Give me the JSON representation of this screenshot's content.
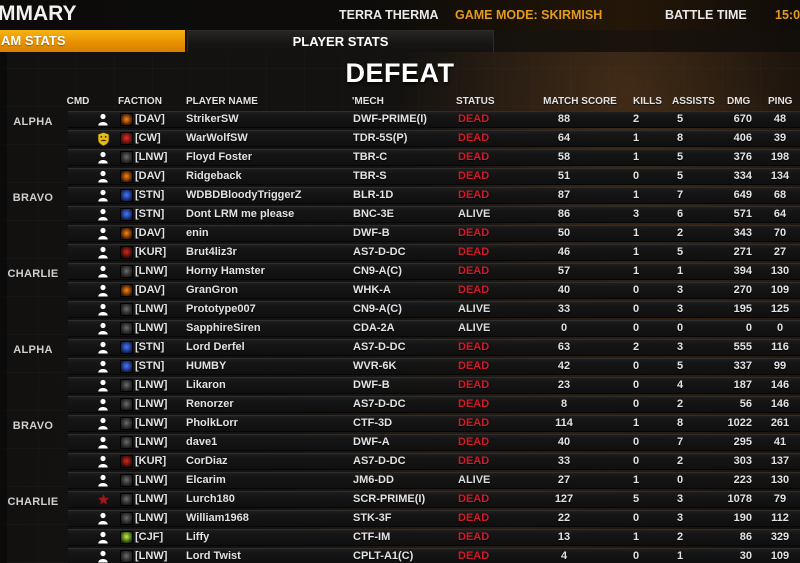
{
  "top_bar": {
    "title": "MMARY",
    "map_name": "TERRA THERMA",
    "game_mode": "GAME MODE: SKIRMISH",
    "battle_time_label": "BATTLE TIME",
    "battle_time_value": "15:00"
  },
  "tabs": {
    "team_stats_label": "AM STATS",
    "player_stats_label": "PLAYER STATS"
  },
  "result_banner": "DEFEAT",
  "colors": {
    "accent_orange": "#e39b1c",
    "tab_active_gold": "#f0a400",
    "dead_red": "#cf1b2b",
    "alive_white": "#dcdcdc"
  },
  "icons": {
    "cmd_player": "player-icon",
    "cmd_commander": "commander-shield-icon",
    "cmd_star": "star-icon"
  },
  "table": {
    "columns": [
      "CMD",
      "FACTION",
      "PLAYER NAME",
      "'MECH",
      "STATUS",
      "MATCH SCORE",
      "KILLS",
      "ASSISTS",
      "DMG",
      "PING"
    ],
    "groups": [
      {
        "lance": "ALPHA",
        "rows": [
          {
            "cmd": "player",
            "faction": "DAV",
            "tag": "[DAV]",
            "player": "StrikerSW",
            "mech": "DWF-PRIME(I)",
            "status": "DEAD",
            "score": "88",
            "kills": "2",
            "assists": "5",
            "dmg": "670",
            "ping": "48"
          },
          {
            "cmd": "commander",
            "faction": "CW",
            "tag": "[CW]",
            "player": "WarWolfSW",
            "mech": "TDR-5S(P)",
            "status": "DEAD",
            "score": "64",
            "kills": "1",
            "assists": "8",
            "dmg": "406",
            "ping": "39"
          },
          {
            "cmd": "player",
            "faction": "LNW",
            "tag": "[LNW]",
            "player": "Floyd Foster",
            "mech": "TBR-C",
            "status": "DEAD",
            "score": "58",
            "kills": "1",
            "assists": "5",
            "dmg": "376",
            "ping": "198"
          },
          {
            "cmd": "player",
            "faction": "DAV",
            "tag": "[DAV]",
            "player": "Ridgeback",
            "mech": "TBR-S",
            "status": "DEAD",
            "score": "51",
            "kills": "0",
            "assists": "5",
            "dmg": "334",
            "ping": "134"
          }
        ]
      },
      {
        "lance": "BRAVO",
        "rows": [
          {
            "cmd": "player",
            "faction": "STN",
            "tag": "[STN]",
            "player": "WDBDBloodyTriggerZ",
            "mech": "BLR-1D",
            "status": "DEAD",
            "score": "87",
            "kills": "1",
            "assists": "7",
            "dmg": "649",
            "ping": "68"
          },
          {
            "cmd": "player",
            "faction": "STN",
            "tag": "[STN]",
            "player": "Dont LRM me please",
            "mech": "BNC-3E",
            "status": "ALIVE",
            "score": "86",
            "kills": "3",
            "assists": "6",
            "dmg": "571",
            "ping": "64"
          },
          {
            "cmd": "player",
            "faction": "DAV",
            "tag": "[DAV]",
            "player": "enin",
            "mech": "DWF-B",
            "status": "DEAD",
            "score": "50",
            "kills": "1",
            "assists": "2",
            "dmg": "343",
            "ping": "70"
          },
          {
            "cmd": "player",
            "faction": "KUR",
            "tag": "[KUR]",
            "player": "Brut4liz3r",
            "mech": "AS7-D-DC",
            "status": "DEAD",
            "score": "46",
            "kills": "1",
            "assists": "5",
            "dmg": "271",
            "ping": "27"
          }
        ]
      },
      {
        "lance": "CHARLIE",
        "rows": [
          {
            "cmd": "player",
            "faction": "LNW",
            "tag": "[LNW]",
            "player": "Horny Hamster",
            "mech": "CN9-A(C)",
            "status": "DEAD",
            "score": "57",
            "kills": "1",
            "assists": "1",
            "dmg": "394",
            "ping": "130"
          },
          {
            "cmd": "player",
            "faction": "DAV",
            "tag": "[DAV]",
            "player": "GranGron",
            "mech": "WHK-A",
            "status": "DEAD",
            "score": "40",
            "kills": "0",
            "assists": "3",
            "dmg": "270",
            "ping": "109"
          },
          {
            "cmd": "player",
            "faction": "LNW",
            "tag": "[LNW]",
            "player": "Prototype007",
            "mech": "CN9-A(C)",
            "status": "ALIVE",
            "score": "33",
            "kills": "0",
            "assists": "3",
            "dmg": "195",
            "ping": "125"
          },
          {
            "cmd": "player",
            "faction": "LNW",
            "tag": "[LNW]",
            "player": "SapphireSiren",
            "mech": "CDA-2A",
            "status": "ALIVE",
            "score": "0",
            "kills": "0",
            "assists": "0",
            "dmg": "0",
            "ping": "0"
          }
        ]
      },
      {
        "lance": "ALPHA",
        "rows": [
          {
            "cmd": "player",
            "faction": "STN",
            "tag": "[STN]",
            "player": "Lord Derfel",
            "mech": "AS7-D-DC",
            "status": "DEAD",
            "score": "63",
            "kills": "2",
            "assists": "3",
            "dmg": "555",
            "ping": "116"
          },
          {
            "cmd": "player",
            "faction": "STN",
            "tag": "[STN]",
            "player": "HUMBY",
            "mech": "WVR-6K",
            "status": "DEAD",
            "score": "42",
            "kills": "0",
            "assists": "5",
            "dmg": "337",
            "ping": "99"
          },
          {
            "cmd": "player",
            "faction": "LNW",
            "tag": "[LNW]",
            "player": "Likaron",
            "mech": "DWF-B",
            "status": "DEAD",
            "score": "23",
            "kills": "0",
            "assists": "4",
            "dmg": "187",
            "ping": "146"
          },
          {
            "cmd": "player",
            "faction": "LNW",
            "tag": "[LNW]",
            "player": "Renorzer",
            "mech": "AS7-D-DC",
            "status": "DEAD",
            "score": "8",
            "kills": "0",
            "assists": "2",
            "dmg": "56",
            "ping": "146"
          }
        ]
      },
      {
        "lance": "BRAVO",
        "rows": [
          {
            "cmd": "player",
            "faction": "LNW",
            "tag": "[LNW]",
            "player": "PholkLorr",
            "mech": "CTF-3D",
            "status": "DEAD",
            "score": "114",
            "kills": "1",
            "assists": "8",
            "dmg": "1022",
            "ping": "261"
          },
          {
            "cmd": "player",
            "faction": "LNW",
            "tag": "[LNW]",
            "player": "dave1",
            "mech": "DWF-A",
            "status": "DEAD",
            "score": "40",
            "kills": "0",
            "assists": "7",
            "dmg": "295",
            "ping": "41"
          },
          {
            "cmd": "player",
            "faction": "KUR",
            "tag": "[KUR]",
            "player": "CorDiaz",
            "mech": "AS7-D-DC",
            "status": "DEAD",
            "score": "33",
            "kills": "0",
            "assists": "2",
            "dmg": "303",
            "ping": "137"
          },
          {
            "cmd": "player",
            "faction": "LNW",
            "tag": "[LNW]",
            "player": "Elcarim",
            "mech": "JM6-DD",
            "status": "ALIVE",
            "score": "27",
            "kills": "1",
            "assists": "0",
            "dmg": "223",
            "ping": "130"
          }
        ]
      },
      {
        "lance": "CHARLIE",
        "rows": [
          {
            "cmd": "star",
            "faction": "LNW",
            "tag": "[LNW]",
            "player": "Lurch180",
            "mech": "SCR-PRIME(I)",
            "status": "DEAD",
            "score": "127",
            "kills": "5",
            "assists": "3",
            "dmg": "1078",
            "ping": "79"
          },
          {
            "cmd": "player",
            "faction": "LNW",
            "tag": "[LNW]",
            "player": "William1968",
            "mech": "STK-3F",
            "status": "DEAD",
            "score": "22",
            "kills": "0",
            "assists": "3",
            "dmg": "190",
            "ping": "112"
          },
          {
            "cmd": "player",
            "faction": "CJF",
            "tag": "[CJF]",
            "player": "Liffy",
            "mech": "CTF-IM",
            "status": "DEAD",
            "score": "13",
            "kills": "1",
            "assists": "2",
            "dmg": "86",
            "ping": "329"
          },
          {
            "cmd": "player",
            "faction": "LNW",
            "tag": "[LNW]",
            "player": "Lord Twist",
            "mech": "CPLT-A1(C)",
            "status": "DEAD",
            "score": "4",
            "kills": "0",
            "assists": "1",
            "dmg": "30",
            "ping": "109"
          }
        ]
      }
    ]
  }
}
